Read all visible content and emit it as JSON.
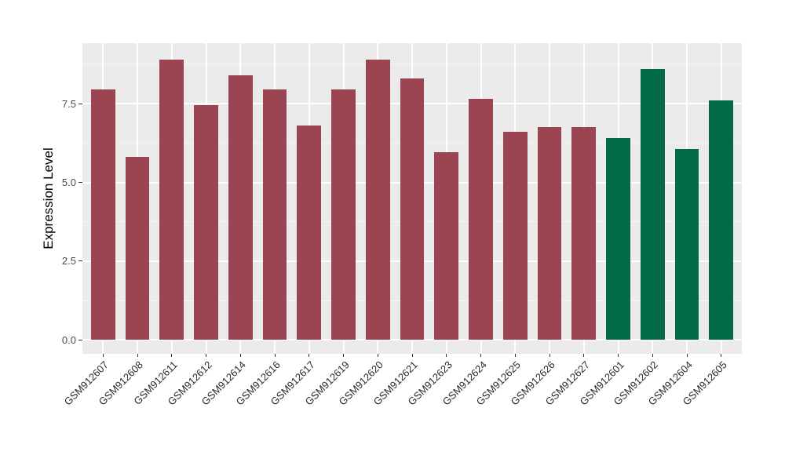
{
  "chart_data": {
    "type": "bar",
    "title": "",
    "xlabel": "",
    "ylabel": "Expression Level",
    "categories": [
      "GSM912607",
      "GSM912608",
      "GSM912611",
      "GSM912612",
      "GSM912614",
      "GSM912616",
      "GSM912617",
      "GSM912619",
      "GSM912620",
      "GSM912621",
      "GSM912623",
      "GSM912624",
      "GSM912625",
      "GSM912626",
      "GSM912627",
      "GSM912601",
      "GSM912602",
      "GSM912604",
      "GSM912605"
    ],
    "values": [
      7.95,
      5.8,
      8.9,
      7.45,
      8.4,
      7.95,
      6.8,
      7.95,
      8.9,
      8.3,
      5.95,
      7.65,
      6.6,
      6.75,
      6.75,
      6.4,
      8.6,
      6.05,
      7.6
    ],
    "bar_groups": [
      "a",
      "a",
      "a",
      "a",
      "a",
      "a",
      "a",
      "a",
      "a",
      "a",
      "a",
      "a",
      "a",
      "a",
      "a",
      "b",
      "b",
      "b",
      "b"
    ],
    "group_colors": {
      "a": "#9B4452",
      "b": "#026B46"
    },
    "ylim": [
      -0.44,
      9.42
    ],
    "yticks": [
      0.0,
      2.5,
      5.0,
      7.5
    ],
    "ytick_labels": [
      "0.0",
      "2.5",
      "5.0",
      "7.5"
    ],
    "yticks_minor": [
      1.25,
      3.75,
      6.25,
      8.75
    ],
    "grid": true,
    "legend": false,
    "panel_bg": "#EBEBEB",
    "grid_major_color": "#FFFFFF",
    "grid_minor_color": "#F5F5F5"
  }
}
